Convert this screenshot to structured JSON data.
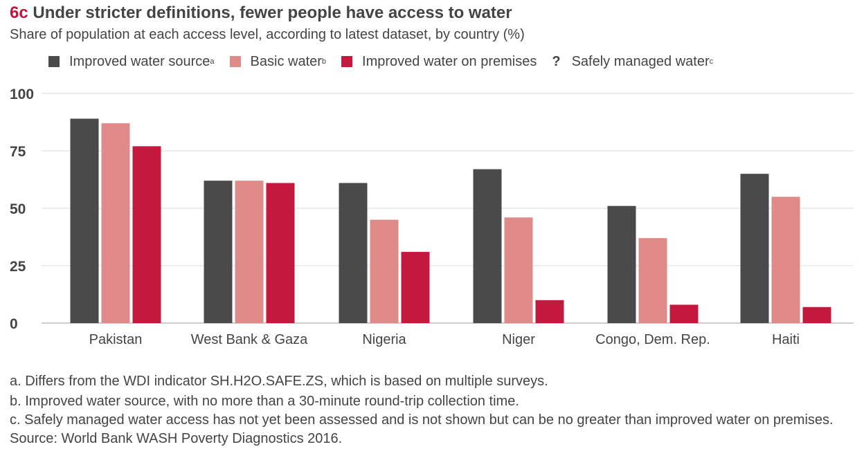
{
  "header": {
    "fig_number": "6c",
    "title": "Under stricter definitions, fewer people have access to water",
    "subtitle": "Share of population at each access level, according to latest dataset, by country (%)"
  },
  "legend": [
    {
      "label": "Improved water source",
      "sup": "a",
      "color": "#4a4a4a",
      "marker": "square"
    },
    {
      "label": "Basic water",
      "sup": "b",
      "color": "#e08a8a",
      "marker": "square"
    },
    {
      "label": "Improved water on premises",
      "sup": "",
      "color": "#c4193f",
      "marker": "square"
    },
    {
      "label": "Safely managed water",
      "sup": "c",
      "color": "#444444",
      "marker": "?"
    }
  ],
  "chart_data": {
    "type": "bar",
    "categories": [
      "Pakistan",
      "West Bank & Gaza",
      "Nigeria",
      "Niger",
      "Congo, Dem. Rep.",
      "Haiti"
    ],
    "series": [
      {
        "name": "Improved water source",
        "color": "#4a4a4a",
        "values": [
          89,
          62,
          61,
          67,
          51,
          65
        ]
      },
      {
        "name": "Basic water",
        "color": "#e08a8a",
        "values": [
          87,
          62,
          45,
          46,
          37,
          55
        ]
      },
      {
        "name": "Improved water on premises",
        "color": "#c4193f",
        "values": [
          77,
          61,
          31,
          10,
          8,
          7
        ]
      }
    ],
    "ylim": [
      0,
      100
    ],
    "yticks": [
      0,
      25,
      50,
      75,
      100
    ],
    "grid": true,
    "legend_position": "top"
  },
  "notes": [
    "a. Differs from the WDI indicator SH.H2O.SAFE.ZS, which is based on multiple surveys.",
    "b. Improved water source, with no more than a 30-minute round-trip collection time.",
    "c. Safely managed water access has not yet been assessed and is not shown but can be no greater than improved water on premises.",
    "Source: World Bank WASH Poverty Diagnostics 2016."
  ]
}
